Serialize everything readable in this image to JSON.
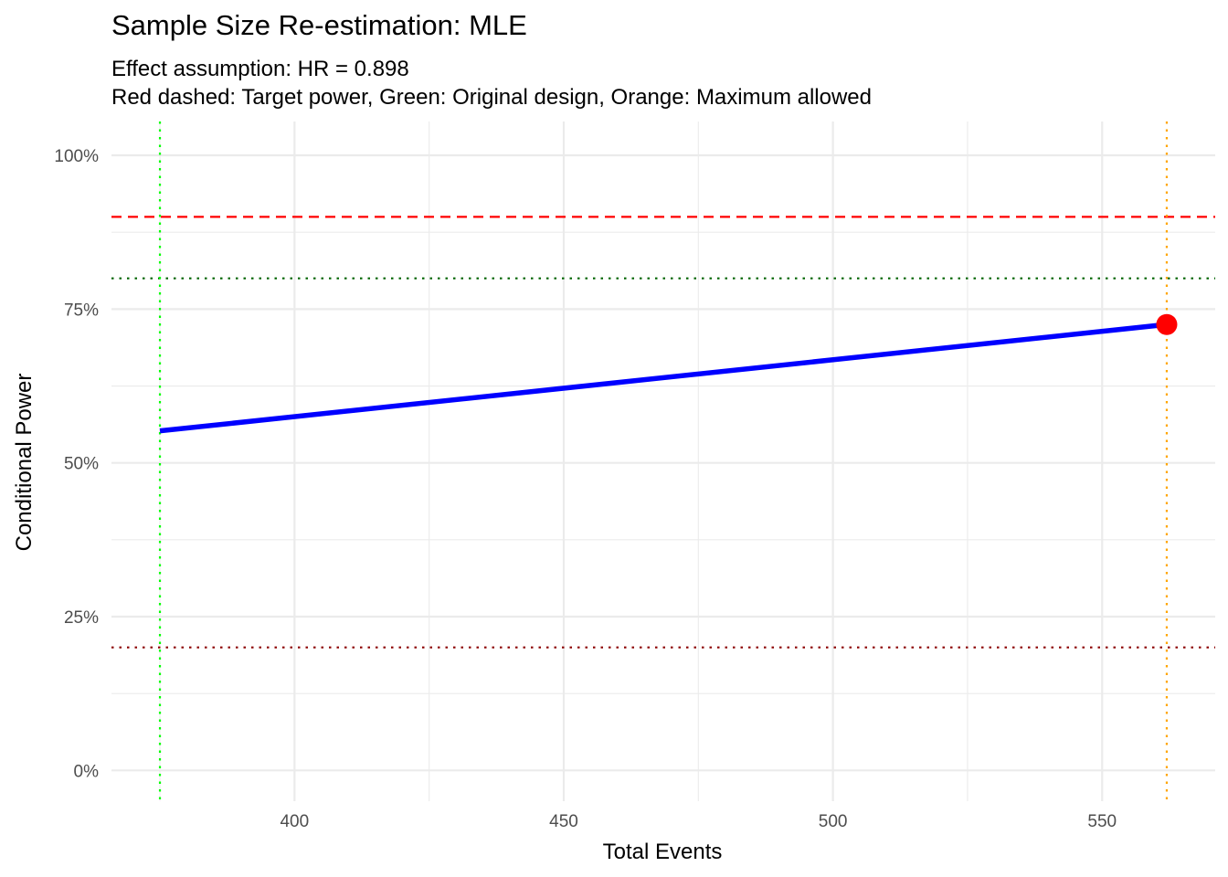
{
  "chart_data": {
    "type": "line",
    "title": "Sample Size Re-estimation: MLE",
    "subtitle_lines": [
      "Effect assumption: HR = 0.898",
      "Red dashed: Target power, Green: Original design, Orange: Maximum allowed"
    ],
    "xlabel": "Total Events",
    "ylabel": "Conditional Power",
    "xlim": [
      366,
      571
    ],
    "ylim": [
      -0.05,
      1.055
    ],
    "x_ticks": [
      400,
      450,
      500,
      550
    ],
    "x_tick_labels": [
      "400",
      "450",
      "500",
      "550"
    ],
    "y_ticks": [
      0,
      0.25,
      0.5,
      0.75,
      1.0
    ],
    "y_tick_labels": [
      "0%",
      "25%",
      "50%",
      "75%",
      "100%"
    ],
    "grid": true,
    "legend": "none",
    "series": [
      {
        "color": "#0000ff",
        "x": [
          375,
          562
        ],
        "y": [
          0.552,
          0.725
        ]
      }
    ],
    "highlight_point": {
      "x": 562,
      "y": 0.725,
      "color": "#ff0000"
    },
    "reference_lines": [
      {
        "axis": "y",
        "value": 0.9,
        "color": "#ff0000",
        "style": "dashed"
      },
      {
        "axis": "y",
        "value": 0.8,
        "color": "#006400",
        "style": "dotted"
      },
      {
        "axis": "y",
        "value": 0.2,
        "color": "#8b0000",
        "style": "dotted"
      },
      {
        "axis": "x",
        "value": 375,
        "color": "#00ff00",
        "style": "dotted"
      },
      {
        "axis": "x",
        "value": 562,
        "color": "#ffa500",
        "style": "dotted"
      }
    ]
  }
}
